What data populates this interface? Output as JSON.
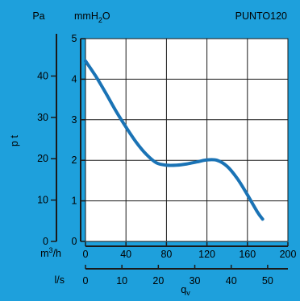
{
  "header": {
    "unit_pa": "Pa",
    "unit_mmh2o": "mmH",
    "unit_mmh2o_sub": "2",
    "unit_mmh2o_tail": "O",
    "model": "PUNTO120"
  },
  "colors": {
    "background": "#1ea0dc",
    "plot_area": "#ffffff",
    "grid": "#1a1a1a",
    "curve": "#1a73b5",
    "text": "#000000"
  },
  "chart_data": {
    "type": "line",
    "title": "PUNTO120",
    "xlabel": "qv",
    "xlabel_main": "q",
    "xlabel_sub": "v",
    "ylabel": "p t",
    "x_unit_flow": "m³/h",
    "x_unit_flow_main": "m",
    "x_unit_flow_sup": "3",
    "x_unit_flow_tail": "/h",
    "x_unit_ls": "l/s",
    "y_unit_pa": "Pa",
    "y_unit_mmh2o": "mmH2O",
    "xlim": [
      0,
      200
    ],
    "ylim_mmh2o": [
      0,
      5
    ],
    "ylim_pa": [
      0,
      49.05
    ],
    "x_ticks_m3h": [
      0,
      40,
      80,
      120,
      160,
      200
    ],
    "x_ticks_ls": [
      0,
      10,
      20,
      30,
      40,
      50
    ],
    "y_ticks_mmh2o": [
      0,
      1,
      2,
      3,
      4,
      5
    ],
    "y_ticks_pa": [
      0,
      10,
      20,
      30,
      40
    ],
    "grid": true,
    "series": [
      {
        "x": [
          0,
          10,
          20,
          30,
          40,
          50,
          60,
          70,
          80,
          90,
          100,
          110,
          120,
          130,
          140,
          150,
          160,
          170,
          175
        ],
        "y": [
          4.45,
          4.08,
          3.66,
          3.22,
          2.82,
          2.45,
          2.15,
          1.94,
          1.88,
          1.88,
          1.91,
          1.96,
          2.01,
          2.0,
          1.85,
          1.55,
          1.15,
          0.72,
          0.55
        ]
      }
    ]
  }
}
